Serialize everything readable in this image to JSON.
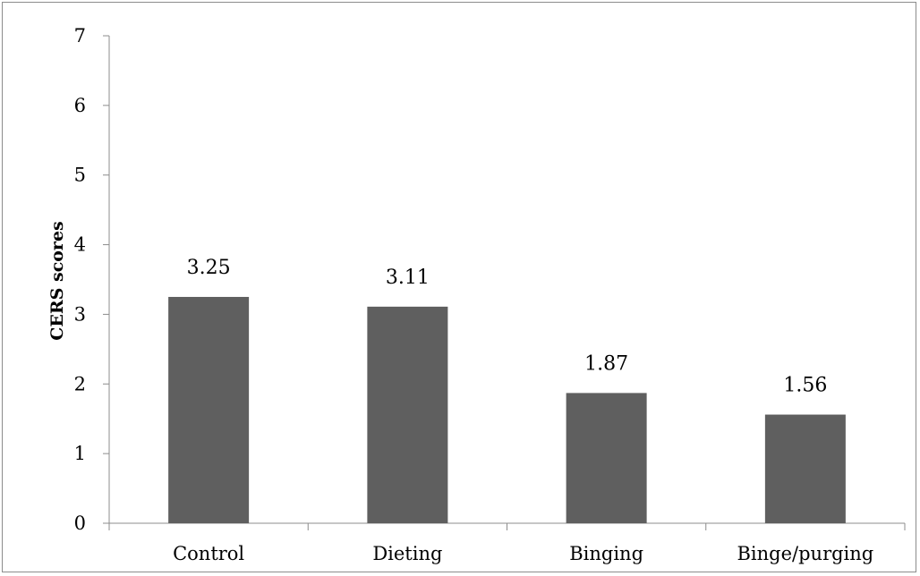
{
  "chart_data": {
    "type": "bar",
    "title": "",
    "xlabel": "",
    "ylabel": "CERS scores",
    "categories": [
      "Control",
      "Dieting",
      "Binging",
      "Binge/purging"
    ],
    "values": [
      3.25,
      3.11,
      1.87,
      1.56
    ],
    "value_labels": [
      "3.25",
      "3.11",
      "1.87",
      "1.56"
    ],
    "ylim": [
      0,
      7
    ],
    "yticks": [
      "0",
      "1",
      "2",
      "3",
      "4",
      "5",
      "6",
      "7"
    ],
    "grid": false,
    "legend": "none",
    "bar_color": "#5f5f5f"
  }
}
